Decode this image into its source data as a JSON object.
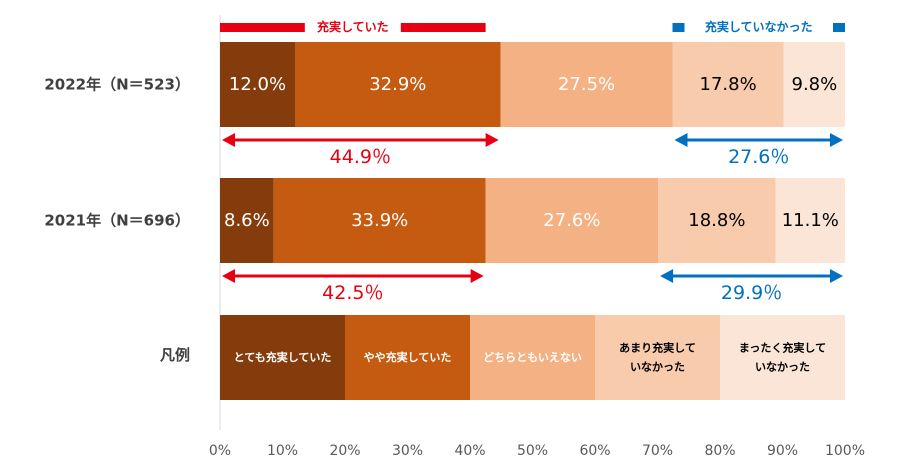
{
  "chart_data": {
    "type": "bar",
    "orientation": "horizontal",
    "stacked": true,
    "percent": true,
    "categories": [
      "2022年（N＝523）",
      "2021年（N＝696）"
    ],
    "series": [
      {
        "name": "とても充実していた",
        "values": [
          12.0,
          8.6
        ],
        "color": "#843C0C",
        "text_color": "#ffffff"
      },
      {
        "name": "やや充実していた",
        "values": [
          32.9,
          33.9
        ],
        "color": "#C55A11",
        "text_color": "#ffffff"
      },
      {
        "name": "どちらともいえない",
        "values": [
          27.5,
          27.6
        ],
        "color": "#F4B183",
        "text_color": "#ffffff"
      },
      {
        "name": "あまり充実していなかった",
        "values": [
          17.8,
          18.8
        ],
        "color": "#F8CBAD",
        "text_color": "#000000"
      },
      {
        "name": "まったく充実していなかった",
        "values": [
          9.8,
          11.1
        ],
        "color": "#FBE5D6",
        "text_color": "#000000"
      }
    ],
    "data_labels": [
      [
        "12.0%",
        "32.9%",
        "27.5%",
        "17.8%",
        "9.8%"
      ],
      [
        "8.6%",
        "33.9%",
        "27.6%",
        "18.8%",
        "11.1%"
      ]
    ],
    "legend": {
      "label": "凡例",
      "items": [
        {
          "lines": [
            "とても充実していた"
          ]
        },
        {
          "lines": [
            "やや充実していた"
          ]
        },
        {
          "lines": [
            "どちらともいえない"
          ]
        },
        {
          "lines": [
            "あまり充実して",
            "いなかった"
          ]
        },
        {
          "lines": [
            "まったく充実して",
            "いなかった"
          ]
        }
      ]
    },
    "group_headers": {
      "positive": {
        "label": "充実していた",
        "color": "#E60012"
      },
      "negative": {
        "label": "充実していなかった",
        "color": "#0070C0"
      }
    },
    "summaries": [
      {
        "positive": "44.9％",
        "negative": "27.6％"
      },
      {
        "positive": "42.5％",
        "negative": "29.9％"
      }
    ],
    "xlim": [
      0,
      100
    ],
    "xticks": [
      "0%",
      "10%",
      "20%",
      "30%",
      "40%",
      "50%",
      "60%",
      "70%",
      "80%",
      "90%",
      "100%"
    ],
    "grid": false
  }
}
